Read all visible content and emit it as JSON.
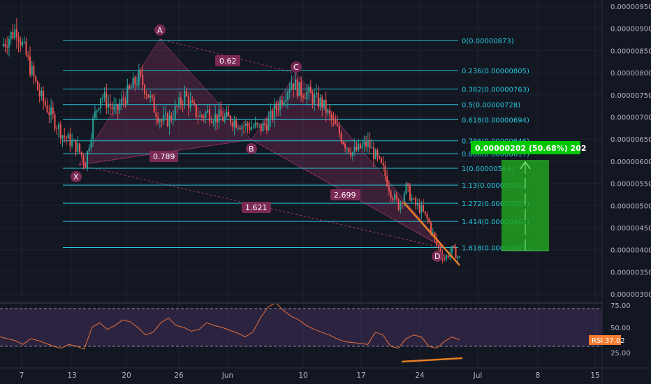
{
  "colors": {
    "background": "#131722",
    "grid": "#2a2e39",
    "candle_up": "#26a69a",
    "candle_down": "#ef5350",
    "fib_line": "#26c6da",
    "pattern_fill": "#a0356f",
    "trendline": "#e67e22",
    "position_fill": "#21a121",
    "position_badge": "#00c800",
    "rsi_line": "#e8703a",
    "rsi_band": "#5b3a7a",
    "rsi_badge": "#f57c30"
  },
  "chart_data": [
    {
      "type": "candlestick",
      "panel": "price",
      "y_ticks": [
        "0.00000950",
        "0.00000900",
        "0.00000850",
        "0.00000800",
        "0.00000750",
        "0.00000700",
        "0.00000650",
        "0.00000600",
        "0.00000550",
        "0.00000500",
        "0.00000450",
        "0.00000400",
        "0.00000350",
        "0.00000300"
      ],
      "x_ticks": [
        "7",
        "13",
        "20",
        "26",
        "Jun",
        "10",
        "17",
        "24",
        "Jul",
        "8",
        "15"
      ],
      "price_path": [
        {
          "t": 0,
          "p": 8.6e-06
        },
        {
          "t": 1,
          "p": 8.8e-06
        },
        {
          "t": 2,
          "p": 9e-06
        },
        {
          "t": 3,
          "p": 8.5e-06
        },
        {
          "t": 4,
          "p": 8e-06
        },
        {
          "t": 5,
          "p": 7.5e-06
        },
        {
          "t": 6,
          "p": 7.2e-06
        },
        {
          "t": 8,
          "p": 6.6e-06
        },
        {
          "t": 10,
          "p": 6.3e-06
        },
        {
          "t": 11,
          "p": 5.95e-06
        },
        {
          "t": 12,
          "p": 6.9e-06
        },
        {
          "t": 13,
          "p": 7.5e-06
        },
        {
          "t": 14,
          "p": 7.3e-06
        },
        {
          "t": 15,
          "p": 7.1e-06
        },
        {
          "t": 16,
          "p": 7.4e-06
        },
        {
          "t": 18,
          "p": 7.9e-06
        },
        {
          "t": 19,
          "p": 7.6e-06
        },
        {
          "t": 20,
          "p": 7.2e-06
        },
        {
          "t": 21,
          "p": 6.9e-06
        },
        {
          "t": 22,
          "p": 6.95e-06
        },
        {
          "t": 23,
          "p": 7.2e-06
        },
        {
          "t": 24,
          "p": 7.5e-06
        },
        {
          "t": 25,
          "p": 7.2e-06
        },
        {
          "t": 26,
          "p": 7e-06
        },
        {
          "t": 27,
          "p": 7.1e-06
        },
        {
          "t": 28,
          "p": 7e-06
        },
        {
          "t": 30,
          "p": 6.95e-06
        },
        {
          "t": 32,
          "p": 6.8e-06
        },
        {
          "t": 34,
          "p": 6.75e-06
        },
        {
          "t": 35,
          "p": 6.9e-06
        },
        {
          "t": 36,
          "p": 7.2e-06
        },
        {
          "t": 37,
          "p": 7.5e-06
        },
        {
          "t": 38,
          "p": 7.8e-06
        },
        {
          "t": 39,
          "p": 7.6e-06
        },
        {
          "t": 40,
          "p": 7.55e-06
        },
        {
          "t": 41,
          "p": 7.4e-06
        },
        {
          "t": 42,
          "p": 7.3e-06
        },
        {
          "t": 43,
          "p": 7e-06
        },
        {
          "t": 44,
          "p": 6.7e-06
        },
        {
          "t": 45,
          "p": 6.4e-06
        },
        {
          "t": 46,
          "p": 6.2e-06
        },
        {
          "t": 47,
          "p": 6.3e-06
        },
        {
          "t": 48,
          "p": 6.4e-06
        },
        {
          "t": 49,
          "p": 6.1e-06
        },
        {
          "t": 50,
          "p": 5.8e-06
        },
        {
          "t": 51,
          "p": 5.3e-06
        },
        {
          "t": 52,
          "p": 5e-06
        },
        {
          "t": 53,
          "p": 5.4e-06
        },
        {
          "t": 54,
          "p": 5.05e-06
        },
        {
          "t": 55,
          "p": 4.9e-06
        },
        {
          "t": 56,
          "p": 4.6e-06
        },
        {
          "t": 57,
          "p": 4.1e-06
        },
        {
          "t": 58,
          "p": 3.8e-06
        },
        {
          "t": 59,
          "p": 4e-06
        },
        {
          "t": 60,
          "p": 3.8e-06
        }
      ]
    },
    {
      "type": "line",
      "panel": "rsi",
      "y_ticks": [
        "75.00",
        "50.00",
        "25.00"
      ],
      "band": [
        30,
        70
      ],
      "current": {
        "label": "RSI",
        "value": "37.02"
      },
      "values": [
        40,
        38,
        36,
        32,
        38,
        36,
        33,
        30,
        28,
        32,
        30,
        27,
        50,
        55,
        48,
        52,
        58,
        56,
        50,
        42,
        45,
        55,
        60,
        52,
        50,
        46,
        48,
        55,
        52,
        50,
        47,
        44,
        40,
        45,
        60,
        72,
        76,
        68,
        62,
        58,
        52,
        48,
        45,
        42,
        38,
        35,
        34,
        33,
        32,
        45,
        42,
        30,
        28,
        38,
        42,
        40,
        30,
        28,
        35,
        40,
        37
      ]
    }
  ],
  "pattern": {
    "points": {
      "X": "X",
      "A": "A",
      "B": "B",
      "C": "C",
      "D": "D"
    },
    "ratios": {
      "xb": "0.789",
      "ac": "0.62",
      "bd": "2.699",
      "xd": "1.621"
    }
  },
  "fib_levels": [
    {
      "label": "0(0.00000873)",
      "price": 8.73e-06
    },
    {
      "label": "0.236(0.00000805)",
      "price": 8.05e-06
    },
    {
      "label": "0.382(0.00000763)",
      "price": 7.63e-06
    },
    {
      "label": "0.5(0.00000728)",
      "price": 7.28e-06
    },
    {
      "label": "0.618(0.00000694)",
      "price": 6.94e-06
    },
    {
      "label": "0.786(0.00000646)",
      "price": 6.46e-06
    },
    {
      "label": "0.886(0.00000617)",
      "price": 6.17e-06
    },
    {
      "label": "1(0.00000584)",
      "price": 5.84e-06
    },
    {
      "label": "1.13(0.00000546)",
      "price": 5.46e-06
    },
    {
      "label": "1.272(0.00000505)",
      "price": 5.05e-06
    },
    {
      "label": "1.414(0.00000464)",
      "price": 4.64e-06
    },
    {
      "label": "1.618(0.00000405)",
      "price": 4.05e-06
    }
  ],
  "position": {
    "badge": "0.00000202 (50.68%) 202",
    "entry": 4e-06,
    "target": 6e-06
  }
}
